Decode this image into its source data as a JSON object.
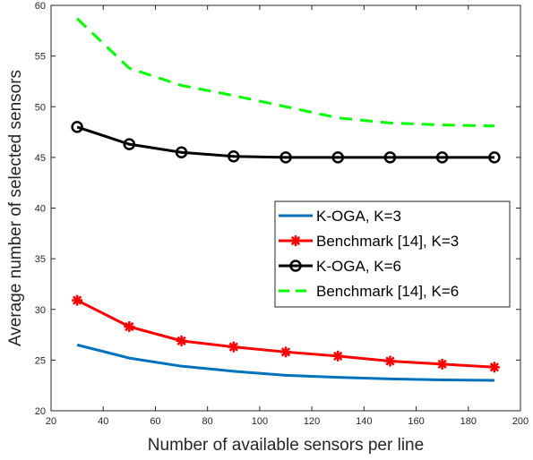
{
  "chart_data": {
    "type": "line",
    "xlabel": "Number of available sensors per line",
    "ylabel": "Average number of selected sensors",
    "xlim": [
      20,
      200
    ],
    "ylim": [
      20,
      60
    ],
    "xticks": [
      20,
      40,
      60,
      80,
      100,
      120,
      140,
      160,
      180,
      200
    ],
    "yticks": [
      20,
      25,
      30,
      35,
      40,
      45,
      50,
      55,
      60
    ],
    "grid": false,
    "legend_position": "right",
    "x": [
      30,
      50,
      70,
      90,
      110,
      130,
      150,
      170,
      190
    ],
    "series": [
      {
        "name": "K-OGA, K=3",
        "color": "#0072BD",
        "style": "solid",
        "marker": "none",
        "values": [
          26.5,
          25.2,
          24.4,
          23.9,
          23.5,
          23.3,
          23.15,
          23.05,
          23.0
        ]
      },
      {
        "name": "Benchmark [14], K=3",
        "color": "#FF0000",
        "style": "solid",
        "marker": "asterisk",
        "values": [
          30.9,
          28.3,
          26.9,
          26.3,
          25.8,
          25.4,
          24.9,
          24.6,
          24.3
        ]
      },
      {
        "name": "K-OGA, K=6",
        "color": "#000000",
        "style": "solid",
        "marker": "circle",
        "values": [
          48.0,
          46.3,
          45.5,
          45.1,
          45.0,
          45.0,
          45.0,
          45.0,
          45.0
        ]
      },
      {
        "name": "Benchmark [14], K=6",
        "color": "#00FF00",
        "style": "dashed",
        "marker": "none",
        "values": [
          58.7,
          53.8,
          52.1,
          51.1,
          50.0,
          48.9,
          48.4,
          48.2,
          48.1
        ]
      }
    ]
  }
}
